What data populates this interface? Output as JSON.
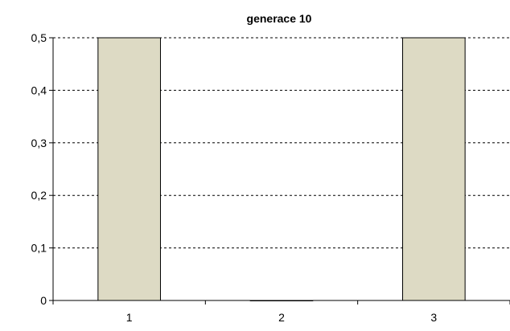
{
  "chart_data": {
    "type": "bar",
    "title": "generace 10",
    "xlabel": "",
    "ylabel": "",
    "categories": [
      "1",
      "2",
      "3"
    ],
    "values": [
      0.5,
      0.0,
      0.5
    ],
    "ylim": [
      0,
      0.5
    ],
    "y_ticks": [
      "0",
      "0,1",
      "0,2",
      "0,3",
      "0,4",
      "0,5"
    ],
    "y_tick_values": [
      0,
      0.1,
      0.2,
      0.3,
      0.4,
      0.5
    ],
    "grid": true,
    "bar_color": "#dddac4",
    "legend": "none"
  }
}
